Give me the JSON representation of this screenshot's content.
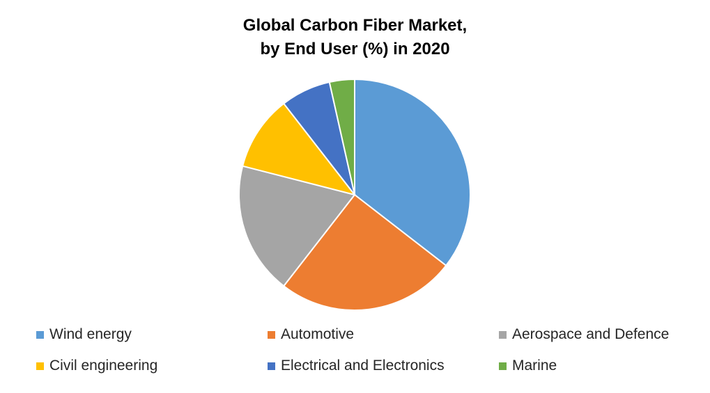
{
  "chart_data": {
    "type": "pie",
    "title_line1": "Global Carbon Fiber Market,",
    "title_line2": "by End User (%) in 2020",
    "categories": [
      "Wind energy",
      "Automotive",
      "Aerospace and Defence",
      "Civil engineering",
      "Electrical and Electronics",
      "Marine"
    ],
    "values": [
      35.5,
      25.0,
      18.5,
      10.5,
      7.0,
      3.5
    ],
    "colors": [
      "#5B9BD5",
      "#ED7D31",
      "#A5A5A5",
      "#FFC000",
      "#4472C4",
      "#70AD47"
    ],
    "legend_position": "bottom",
    "start_angle": "top",
    "direction": "clockwise"
  }
}
